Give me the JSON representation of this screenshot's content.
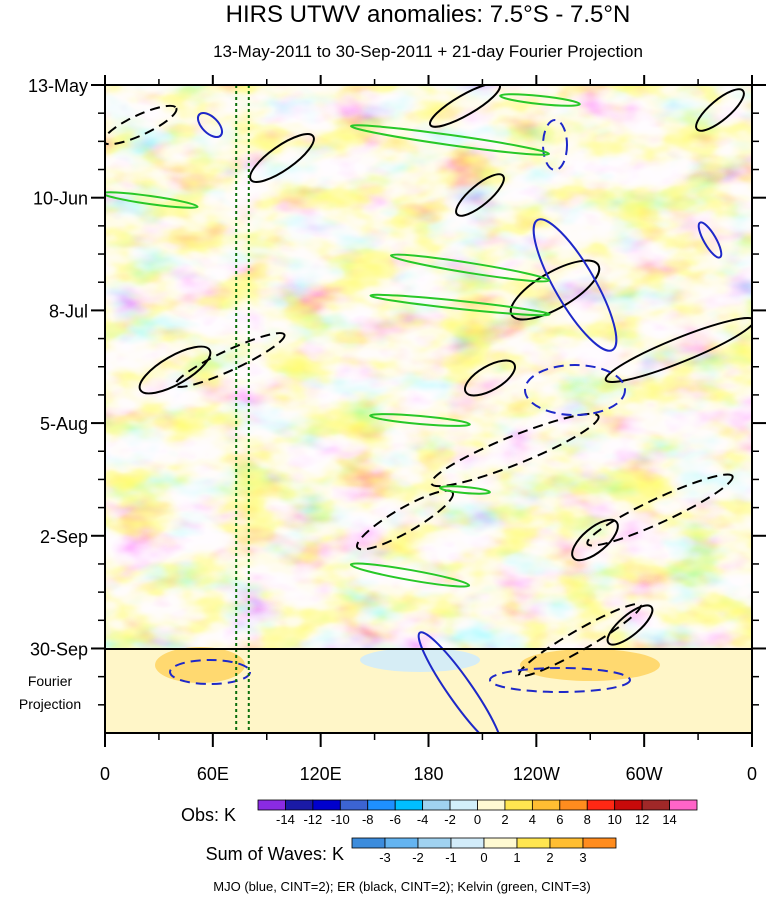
{
  "chart_data": {
    "type": "heatmap",
    "title": "HIRS UTWV anomalies: 7.5°S - 7.5°N",
    "subtitle": "13-May-2011 to 30-Sep-2011 + 21-day Fourier Projection",
    "y_ticks": [
      "13-May",
      "10-Jun",
      "8-Jul",
      "5-Aug",
      "2-Sep",
      "30-Sep"
    ],
    "y_days": [
      0,
      28,
      56,
      84,
      112,
      140
    ],
    "y_range_days": [
      0,
      161
    ],
    "projection_label": [
      "Fourier",
      "Projection"
    ],
    "x_ticks": [
      "0",
      "60E",
      "120E",
      "180",
      "120W",
      "60W",
      "0"
    ],
    "x_degrees": [
      0,
      60,
      120,
      180,
      240,
      300,
      360
    ],
    "x_range_degrees": [
      0,
      360
    ],
    "marker_lines_lon": [
      73,
      80
    ],
    "obs_colorbar": {
      "label": "Obs: K",
      "levels": [
        "-14",
        "-12",
        "-10",
        "-8",
        "-6",
        "-4",
        "-2",
        "0",
        "2",
        "4",
        "6",
        "8",
        "10",
        "12",
        "14"
      ],
      "colors": [
        "#8a2be2",
        "#1a1aa6",
        "#0000cd",
        "#3c64d2",
        "#1e90ff",
        "#00bfff",
        "#a0d2f0",
        "#d2f0fa",
        "#fffad2",
        "#ffe650",
        "#ffbe32",
        "#ff8c1e",
        "#ff2814",
        "#c80a0a",
        "#a02828",
        "#ff64c8"
      ]
    },
    "waves_colorbar": {
      "label": "Sum of Waves: K",
      "levels": [
        "-3",
        "-2",
        "-1",
        "0",
        "1",
        "2",
        "3"
      ],
      "colors": [
        "#3c8cdc",
        "#64b4f0",
        "#a0d2f0",
        "#d2ecfa",
        "#fffad2",
        "#ffe650",
        "#ffbe32",
        "#ff8c1e"
      ]
    },
    "contours_legend": "MJO (blue, CINT=2); ER (black, CINT=2); Kelvin (green, CINT=3)",
    "wave_colors": {
      "mjo": "#1e28c8",
      "er": "#000000",
      "kelvin": "#28c828"
    }
  }
}
